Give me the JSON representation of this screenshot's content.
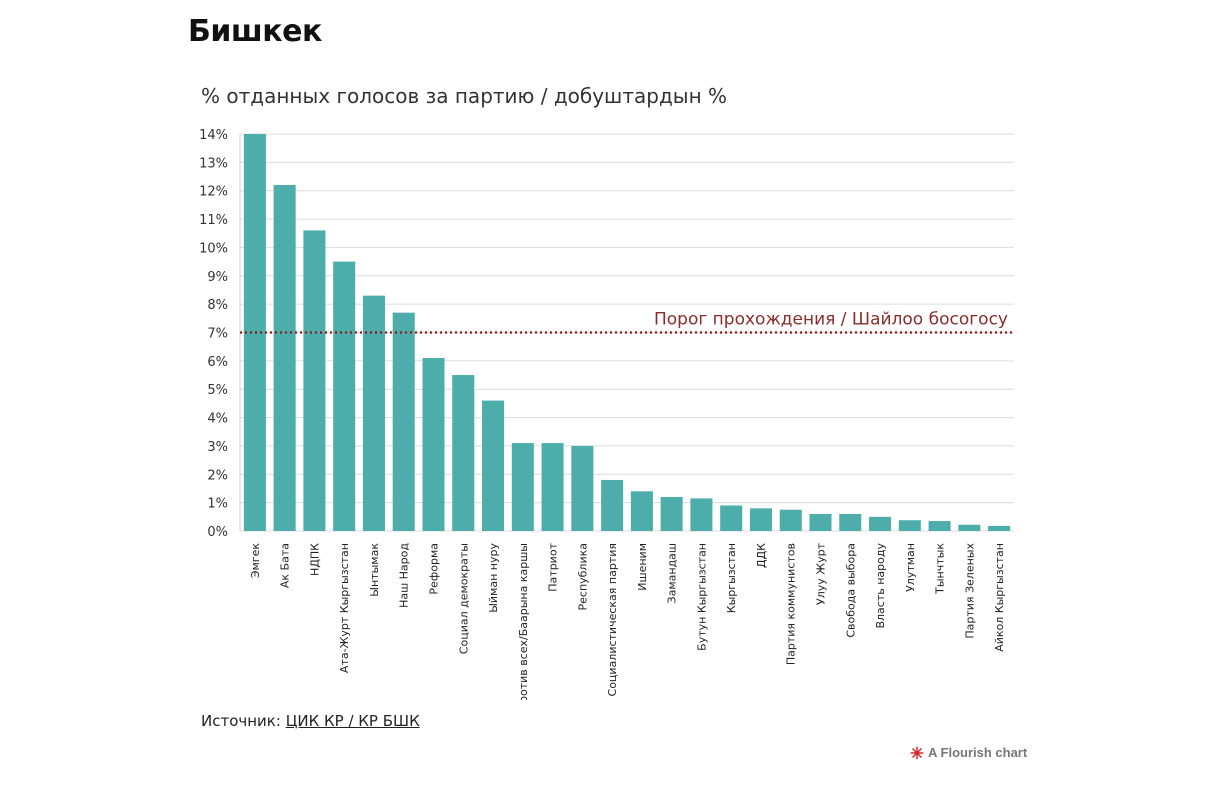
{
  "page": {
    "title": "Бишкек",
    "subtitle": "% отданных голосов за партию / добуштардын %"
  },
  "source": {
    "label": "Источник:",
    "link_text": "ЦИК КР / КР БШК"
  },
  "credit": {
    "text": "A Flourish chart",
    "icon": "flourish-logo-icon"
  },
  "colors": {
    "bar": "#4dadaa",
    "threshold_line": "#8b1a1a",
    "threshold_label": "#8b2b2b",
    "grid": "#dcdcdc"
  },
  "chart_data": {
    "type": "bar",
    "title": "% отданных голосов за партию / добуштардын %",
    "xlabel": "",
    "ylabel": "",
    "ylim": [
      0,
      14
    ],
    "y_ticks": [
      "0%",
      "1%",
      "2%",
      "3%",
      "4%",
      "5%",
      "6%",
      "7%",
      "8%",
      "9%",
      "10%",
      "11%",
      "12%",
      "13%",
      "14%"
    ],
    "grid": true,
    "categories": [
      "Эмгек",
      "Ак Бата",
      "НДПК",
      "Ата-Журт Кыргызстан",
      "Ынтымак",
      "Наш Народ",
      "Реформа",
      "Социал демократы",
      "Ыйман нуру",
      "Против всех/Баарына каршы",
      "Патриот",
      "Республика",
      "Социалистическая партия",
      "Ишеним",
      "Замандаш",
      "Бутун Кыргызстан",
      "Кыргызстан",
      "ДДК",
      "Партия коммунистов",
      "Улуу Журт",
      "Свобода выбора",
      "Власть народу",
      "Улутман",
      "Тынчтык",
      "Партия Зеленых",
      "Айкол Кыргызстан"
    ],
    "values": [
      14.0,
      12.2,
      10.6,
      9.5,
      8.3,
      7.7,
      6.1,
      5.5,
      4.6,
      3.1,
      3.1,
      3.0,
      1.8,
      1.4,
      1.2,
      1.15,
      0.9,
      0.8,
      0.75,
      0.6,
      0.6,
      0.5,
      0.38,
      0.35,
      0.22,
      0.18
    ],
    "annotations": [
      {
        "type": "horizontal-line",
        "y": 7,
        "style": "dotted",
        "label": "Порог прохождения / Шайлоо босогосу"
      }
    ]
  }
}
